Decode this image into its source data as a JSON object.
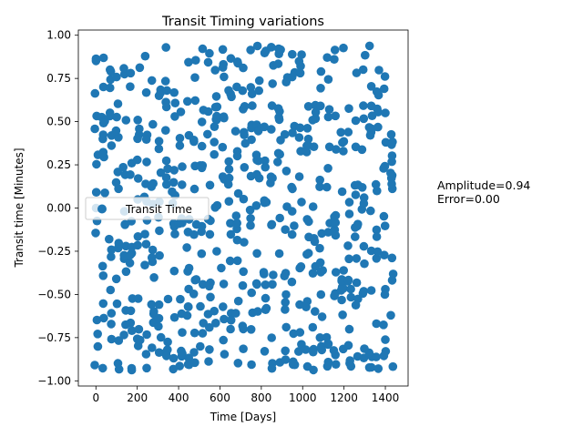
{
  "chart_data": {
    "type": "scatter",
    "title": "Transit Timing variations",
    "xlabel": "Time [Days]",
    "ylabel": "Transit time [Minutes]",
    "xlim": [
      -85,
      1510
    ],
    "ylim": [
      -1.03,
      1.03
    ],
    "xticks": [
      0,
      200,
      400,
      600,
      800,
      1000,
      1200,
      1400
    ],
    "yticks": [
      -1.0,
      -0.75,
      -0.5,
      -0.25,
      0.0,
      0.25,
      0.5,
      0.75,
      1.0
    ],
    "xtick_labels": [
      "0",
      "200",
      "400",
      "600",
      "800",
      "1000",
      "1200",
      "1400"
    ],
    "ytick_labels": [
      "−1.00",
      "−0.75",
      "−0.50",
      "−0.25",
      "0.00",
      "0.25",
      "0.50",
      "0.75",
      "1.00"
    ],
    "grid": false,
    "legend": {
      "entries": [
        "Transit Time"
      ],
      "placement": "center-left"
    },
    "series": [
      {
        "name": "Transit Time",
        "color": "#1f77b4",
        "generator": {
          "description": "approximately 650 observations sampled on 43 equally spaced columns",
          "x_start": 2,
          "x_step": 34,
          "columns": 43,
          "points_per_column": 15,
          "y_min": -0.94,
          "y_max": 0.94
        }
      }
    ]
  },
  "annotation": {
    "line1": "Amplitude=0.94",
    "line2": "Error=0.00"
  }
}
